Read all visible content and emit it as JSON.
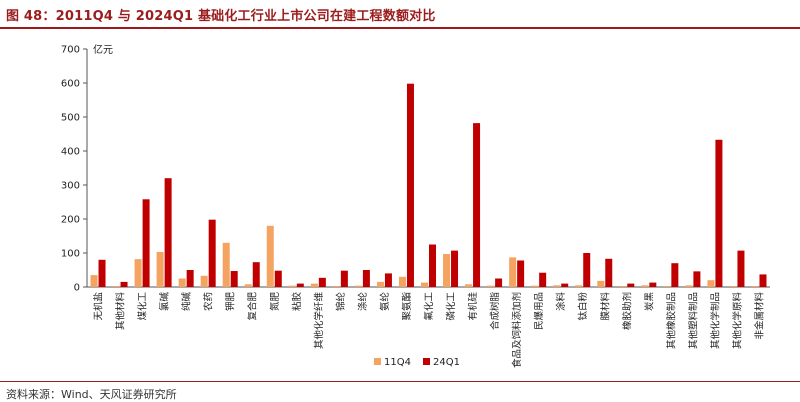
{
  "title": "图 48：2011Q4 与 2024Q1 基础化工行业上市公司在建工程数额对比",
  "source": "资料来源：Wind、天风证券研究所",
  "colors": {
    "accent": "#9b1c1c",
    "series_11q4": "#f4a460",
    "series_24q1": "#c00000"
  },
  "chart_data": {
    "type": "bar",
    "title": "",
    "unit": "亿元",
    "ylim": [
      0,
      700
    ],
    "yticks": [
      0,
      100,
      200,
      300,
      400,
      500,
      600,
      700
    ],
    "grid": false,
    "legend": "bottom-center",
    "categories": [
      "无机盐",
      "其他材料",
      "煤化工",
      "氯碱",
      "纯碱",
      "农药",
      "钾肥",
      "复合肥",
      "氮肥",
      "粘胶",
      "其他化学纤维",
      "锦纶",
      "涤纶",
      "氨纶",
      "聚氨酯",
      "氟化工",
      "磷化工",
      "有机硅",
      "合成树脂",
      "食品及饲料添加剂",
      "民爆用品",
      "涂料",
      "钛白粉",
      "膜材料",
      "橡胶助剂",
      "炭黑",
      "其他橡胶制品",
      "其他塑料制品",
      "其他化学制品",
      "其他化学原料",
      "非金属材料"
    ],
    "series": [
      {
        "name": "11Q4",
        "values": [
          35,
          3,
          82,
          103,
          25,
          33,
          130,
          8,
          180,
          4,
          10,
          3,
          4,
          15,
          30,
          13,
          97,
          8,
          4,
          87,
          4,
          5,
          5,
          18,
          3,
          5,
          3,
          5,
          20,
          3,
          3
        ]
      },
      {
        "name": "24Q1",
        "values": [
          80,
          15,
          258,
          320,
          50,
          198,
          47,
          73,
          48,
          10,
          27,
          48,
          50,
          40,
          598,
          125,
          107,
          482,
          25,
          78,
          42,
          10,
          100,
          83,
          10,
          13,
          70,
          46,
          433,
          107,
          37
        ]
      }
    ]
  }
}
